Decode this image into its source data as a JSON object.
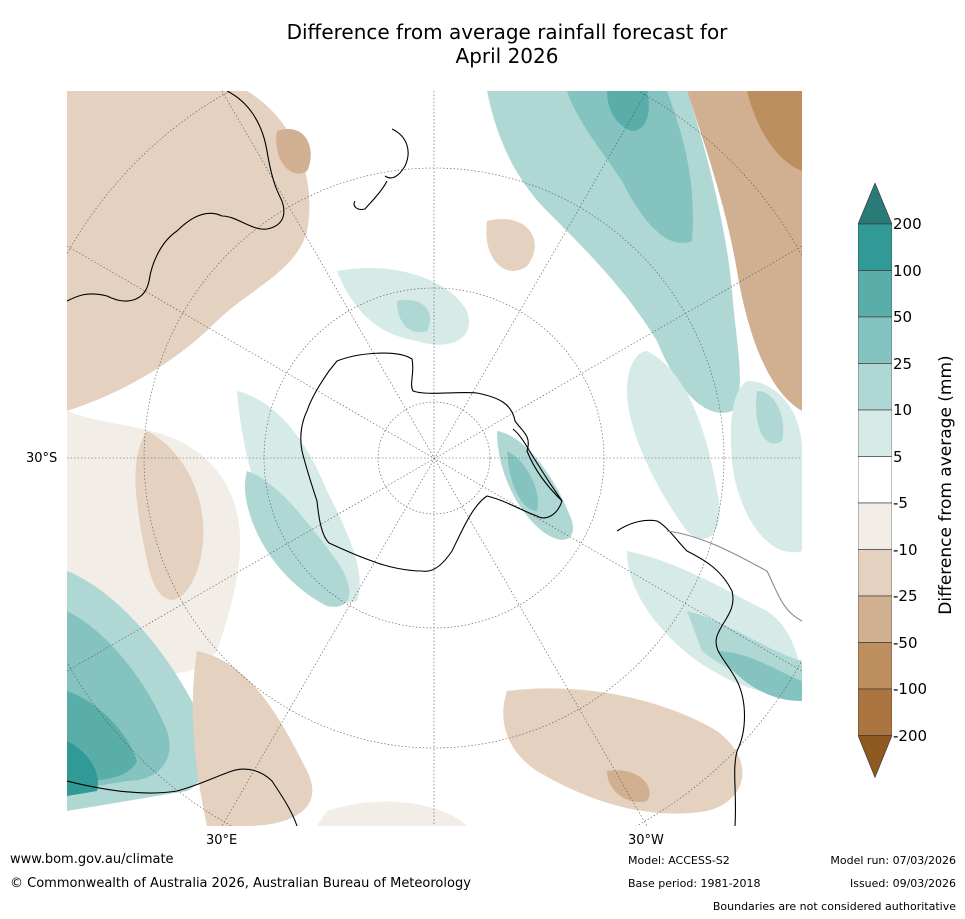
{
  "title": {
    "line1": "Difference from average rainfall forecast for",
    "line2": "April 2026"
  },
  "map": {
    "projection": "south polar stereographic",
    "latitude_label": "30°S",
    "longitude_labels": [
      "30°E",
      "30°W"
    ],
    "features": [
      "Antarctica",
      "Australia",
      "New Zealand",
      "South America",
      "Southern Africa"
    ]
  },
  "colorbar": {
    "title": "Difference from average (mm)",
    "tick_labels": [
      "200",
      "100",
      "50",
      "25",
      "10",
      "5",
      "-5",
      "-10",
      "-25",
      "-50",
      "-100",
      "-200"
    ],
    "colors": {
      "above_200": "#2a7a78",
      "100_200": "#319a97",
      "50_100": "#5aaeaa",
      "25_50": "#84c3c0",
      "10_25": "#afd8d5",
      "5_10": "#d6eae8",
      "neutral": "#ffffff",
      "minus5_minus10": "#f2ede7",
      "minus10_minus25": "#e5d1c0",
      "minus25_minus50": "#d0b090",
      "minus50_minus100": "#bd8f5f",
      "minus100_minus200": "#ab7540",
      "below_minus200": "#8f5a22"
    }
  },
  "footer": {
    "website": "www.bom.gov.au/climate",
    "copyright": "© Commonwealth of Australia 2026, Australian Bureau of Meteorology",
    "model": "Model: ACCESS-S2",
    "base_period": "Base period: 1981-2018",
    "model_run": "Model run: 07/03/2026",
    "issued": "Issued: 09/03/2026",
    "disclaimer": "Boundaries are not considered authoritative"
  }
}
